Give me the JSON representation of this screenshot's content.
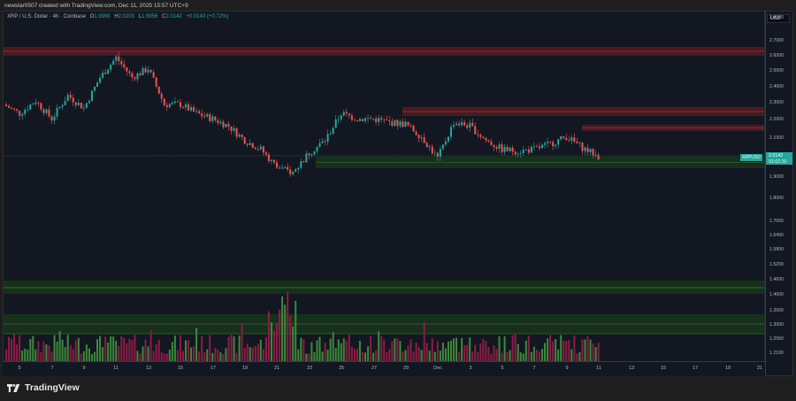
{
  "header": {
    "caption": "newstar0507 created with TradingView.com, Dec 11, 2025 15:57 UTC+9"
  },
  "legend": {
    "symbol": "XRP / U.S. Dollar · 4h · Coinbase",
    "o_label": "O",
    "o_value": "1.9999",
    "h_label": "H",
    "h_value": "2.0203",
    "l_label": "L",
    "l_value": "1.9956",
    "c_label": "C",
    "c_value": "2.0142",
    "change": "+0.0143 (+0.72%)"
  },
  "price_axis": {
    "currency": "USD",
    "ticks": [
      "2.8000",
      "2.7000",
      "2.6000",
      "2.5000",
      "2.4000",
      "2.3000",
      "2.2000",
      "2.1000",
      "1.9000",
      "1.8000",
      "1.7000",
      "1.6400",
      "1.5800",
      "1.5200",
      "1.4600",
      "1.4000",
      "1.3500",
      "1.3000",
      "1.2550",
      "1.2100"
    ]
  },
  "current_price": {
    "symbol_label": "XRPUSD",
    "price": "2.0142",
    "countdown": "01:02:30"
  },
  "time_axis": {
    "ticks": [
      "5",
      "7",
      "9",
      "11",
      "13",
      "15",
      "17",
      "19",
      "21",
      "23",
      "25",
      "27",
      "29",
      "Dec",
      "3",
      "5",
      "7",
      "9",
      "11",
      "13",
      "15",
      "17",
      "19",
      "21"
    ]
  },
  "footer": {
    "brand": "TradingView"
  },
  "colors": {
    "background": "#131722",
    "up": "#26a69a",
    "down": "#ef5350",
    "volume_up": "#3d8a3a",
    "volume_down": "#8c1d45",
    "resistance_zone": "#4a1a22",
    "support_zone": "#16301c"
  },
  "chart_data": {
    "type": "candlestick",
    "title": "XRP / U.S. Dollar · 4h · Coinbase",
    "xlabel": "",
    "ylabel": "USD",
    "ylim": [
      1.19,
      2.82
    ],
    "x_ticks": [
      "Nov 5",
      "Nov 7",
      "Nov 9",
      "Nov 11",
      "Nov 13",
      "Nov 15",
      "Nov 17",
      "Nov 19",
      "Nov 21",
      "Nov 23",
      "Nov 25",
      "Nov 27",
      "Nov 29",
      "Dec 1",
      "Dec 3",
      "Dec 5",
      "Dec 7",
      "Dec 9",
      "Dec 11"
    ],
    "approx_daily_close": {
      "x": [
        "Nov 4",
        "Nov 5",
        "Nov 6",
        "Nov 7",
        "Nov 8",
        "Nov 9",
        "Nov 10",
        "Nov 11",
        "Nov 12",
        "Nov 13",
        "Nov 14",
        "Nov 15",
        "Nov 16",
        "Nov 17",
        "Nov 18",
        "Nov 19",
        "Nov 20",
        "Nov 21",
        "Nov 22",
        "Nov 23",
        "Nov 24",
        "Nov 25",
        "Nov 26",
        "Nov 27",
        "Nov 28",
        "Nov 29",
        "Nov 30",
        "Dec 1",
        "Dec 2",
        "Dec 3",
        "Dec 4",
        "Dec 5",
        "Dec 6",
        "Dec 7",
        "Dec 8",
        "Dec 9",
        "Dec 10",
        "Dec 11"
      ],
      "values": [
        2.3,
        2.25,
        2.32,
        2.22,
        2.35,
        2.28,
        2.45,
        2.56,
        2.45,
        2.5,
        2.3,
        2.3,
        2.25,
        2.22,
        2.18,
        2.1,
        2.05,
        1.95,
        1.92,
        2.03,
        2.1,
        2.25,
        2.22,
        2.22,
        2.2,
        2.19,
        2.12,
        2.0,
        2.2,
        2.18,
        2.1,
        2.05,
        2.04,
        2.05,
        2.08,
        2.12,
        2.06,
        2.01
      ]
    },
    "last": {
      "open": 1.9999,
      "high": 2.0203,
      "low": 1.9956,
      "close": 2.0142,
      "change": 0.0143,
      "change_pct": 0.72
    },
    "annotations": [
      {
        "type": "resistance_zone",
        "from": 2.61,
        "to": 2.66
      },
      {
        "type": "resistance_zone",
        "from": 2.22,
        "to": 2.27,
        "start": "Nov 29"
      },
      {
        "type": "resistance_zone",
        "from": 2.15,
        "to": 2.18,
        "start": "Dec 10"
      },
      {
        "type": "support_zone",
        "from": 1.96,
        "to": 2.01,
        "start": "Nov 23"
      },
      {
        "type": "volume_zone",
        "from": 1.41,
        "to": 1.47
      },
      {
        "type": "volume_zone",
        "from": 1.27,
        "to": 1.34
      }
    ],
    "volume": "bars at bottom, green=up, red=down; spikes near Nov 21-22"
  }
}
